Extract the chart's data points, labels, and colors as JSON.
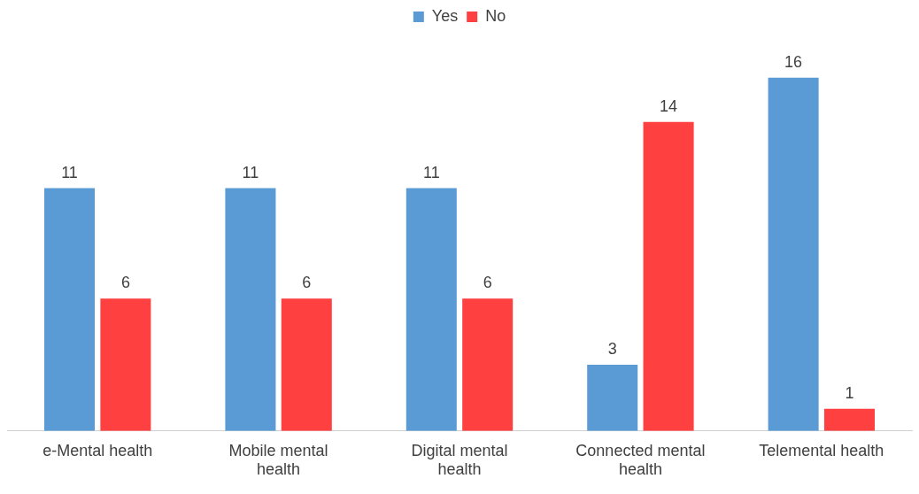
{
  "chart_data": {
    "type": "bar",
    "categories": [
      "e-Mental health",
      "Mobile mental health",
      "Digital mental health",
      "Connected mental health",
      "Telemental health"
    ],
    "series": [
      {
        "name": "Yes",
        "color": "#5b9bd5",
        "values": [
          11,
          11,
          11,
          3,
          16
        ]
      },
      {
        "name": "No",
        "color": "#ff4040",
        "values": [
          6,
          6,
          6,
          14,
          1
        ]
      }
    ],
    "data_labels": true,
    "legend": "top",
    "grid": false
  }
}
